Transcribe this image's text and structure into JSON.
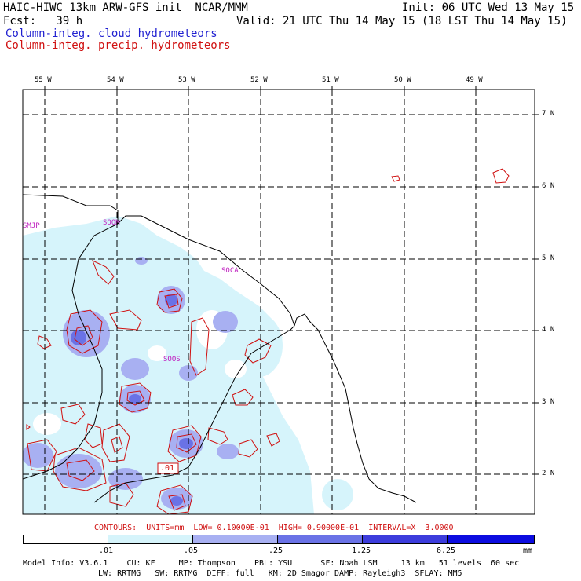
{
  "header": {
    "model_line": "HAIC-HIWC 13km ARW-GFS init  NCAR/MMM",
    "init_line": "Init: 06 UTC Wed 13 May 15",
    "fcst_line": "Fcst:   39 h",
    "valid_line": "Valid: 21 UTC Thu 14 May 15 (18 LST Thu 14 May 15)",
    "field1": "Column-integ. cloud hydrometeors",
    "field2": "Column-integ. precip. hydrometeors"
  },
  "map": {
    "lon_labels": [
      "55 W",
      "54 W",
      "53 W",
      "52 W",
      "51 W",
      "50 W",
      "49 W"
    ],
    "lat_labels": [
      "7 N",
      "6 N",
      "5 N",
      "4 N",
      "3 N",
      "2 N"
    ],
    "stations": [
      "SMJP",
      "SOOM",
      "SOCA",
      "SOOS"
    ],
    "contour_label": ".01",
    "colors": {
      "cloud_light": "#d6f4fb",
      "cloud_mid": "#a8b0f2",
      "cloud_dark": "#6a72e6",
      "precip": "#d01010",
      "coast": "#000000"
    }
  },
  "footer": {
    "contours_line": "CONTOURS:  UNITS=mm  LOW= 0.10000E-01  HIGH= 0.90000E-01  INTERVAL=X  3.0000",
    "scale_ticks": [
      ".01",
      ".05",
      ".25",
      "1.25",
      "6.25",
      "mm"
    ],
    "scale_colors": [
      "#ffffff",
      "#d6f4fb",
      "#a8b0f2",
      "#6a72e6",
      "#3c3cdc",
      "#0c0ce0"
    ],
    "info_line1": "Model Info: V3.6.1    CU: KF     MP: Thompson    PBL: YSU      SF: Noah LSM     13 km   51 levels  60 sec",
    "info_line2": "LW: RRTMG   SW: RRTMG  DIFF: full   KM: 2D Smagor DAMP: Rayleigh3  SFLAY: MM5"
  }
}
